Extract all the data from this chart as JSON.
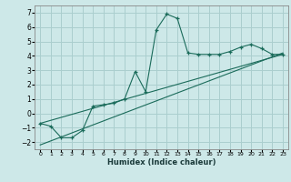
{
  "xlabel": "Humidex (Indice chaleur)",
  "ylabel": "",
  "background_color": "#cde8e8",
  "grid_color": "#aacece",
  "line_color": "#1a6b5a",
  "xlim": [
    -0.5,
    23.5
  ],
  "ylim": [
    -2.5,
    7.5
  ],
  "yticks": [
    -2,
    -1,
    0,
    1,
    2,
    3,
    4,
    5,
    6,
    7
  ],
  "xticks": [
    0,
    1,
    2,
    3,
    4,
    5,
    6,
    7,
    8,
    9,
    10,
    11,
    12,
    13,
    14,
    15,
    16,
    17,
    18,
    19,
    20,
    21,
    22,
    23
  ],
  "curve1_x": [
    0,
    1,
    2,
    3,
    4,
    5,
    6,
    7,
    8,
    9,
    10,
    11,
    12,
    13,
    14,
    15,
    16,
    17,
    18,
    19,
    20,
    21,
    22,
    23
  ],
  "curve1_y": [
    -0.7,
    -0.9,
    -1.7,
    -1.7,
    -1.2,
    0.5,
    0.6,
    0.7,
    1.0,
    2.9,
    1.5,
    5.8,
    6.9,
    6.6,
    4.2,
    4.1,
    4.1,
    4.1,
    4.3,
    4.6,
    4.8,
    4.5,
    4.1,
    4.1
  ],
  "line1_x": [
    0,
    23
  ],
  "line1_y": [
    -0.7,
    4.1
  ],
  "line2_x": [
    0,
    23
  ],
  "line2_y": [
    -2.2,
    4.2
  ]
}
